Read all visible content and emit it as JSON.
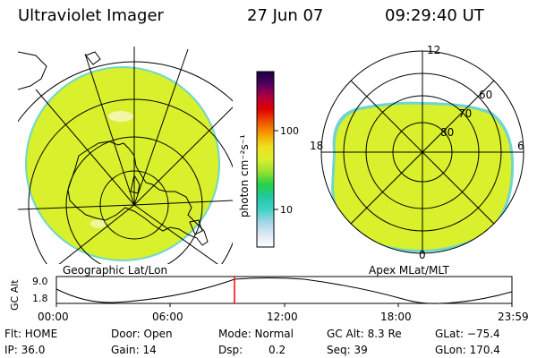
{
  "header": {
    "title": "Ultraviolet Imager",
    "date": "27 Jun 07",
    "time": "09:29:40 UT"
  },
  "colors": {
    "aurora": "#d9f02c",
    "rim": "#6fd6cf",
    "blob": "#f2f7a8",
    "time_marker": "#ff0000"
  },
  "left_map": {
    "caption": "Geographic Lat/Lon"
  },
  "right_map": {
    "caption": "Apex MLat/MLT",
    "mlt_labels": [
      "12",
      "18",
      "6",
      "0"
    ],
    "mlat_labels": [
      "60",
      "70",
      "80"
    ]
  },
  "colorbar": {
    "unit_label": "photon cm⁻²s⁻¹",
    "tick_labels": [
      "100",
      "10"
    ],
    "stops": [
      "#ffffff",
      "#dde8f2",
      "#9ed6e6",
      "#3fd0c8",
      "#22c8a0",
      "#28d048",
      "#98e032",
      "#d9f02c",
      "#f0e020",
      "#f5a000",
      "#f05000",
      "#e00000",
      "#b00040",
      "#500060",
      "#1a0040"
    ]
  },
  "alt_plot": {
    "ylabel": "GC Alt",
    "y_ticks": [
      "9.0",
      "1.8"
    ],
    "x_ticks": [
      "00:00",
      "06:00",
      "12:00",
      "18:00",
      "23:59"
    ]
  },
  "info": {
    "flt": "Flt: HOME",
    "ip": "IP: 36.0",
    "door": "Door: Open",
    "gain": "Gain: 14",
    "mode": "Mode: Normal",
    "dsp_label": "Dsp:",
    "dsp_value": "0.2",
    "gc_alt": "GC Alt: 8.3 Re",
    "seq": "Seq: 39",
    "glat": "GLat: −75.4",
    "glon": "GLon: 170.4"
  }
}
